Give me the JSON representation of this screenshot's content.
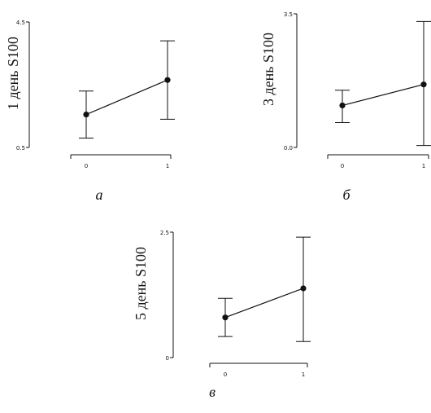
{
  "chart_data": [
    {
      "type": "line",
      "panel_label": "а",
      "ylabel": "1 день S100",
      "ylim": [
        0.5,
        4.5
      ],
      "y_ticks": [
        "0.5",
        "4.5"
      ],
      "x": [
        0,
        1
      ],
      "x_ticks": [
        "0",
        "1"
      ],
      "values": [
        1.55,
        2.65
      ],
      "error_low": [
        0.8,
        1.4
      ],
      "error_high": [
        2.3,
        3.9
      ]
    },
    {
      "type": "line",
      "panel_label": "б",
      "ylabel": "3 день S100",
      "ylim": [
        0.0,
        3.5
      ],
      "y_ticks": [
        "0.0",
        "3.5"
      ],
      "x": [
        0,
        1
      ],
      "x_ticks": [
        "0",
        "1"
      ],
      "values": [
        1.1,
        1.65
      ],
      "error_low": [
        0.65,
        0.05
      ],
      "error_high": [
        1.5,
        3.3
      ]
    },
    {
      "type": "line",
      "panel_label": "в",
      "ylabel": "5 день S100",
      "ylim": [
        0,
        2.5
      ],
      "y_ticks": [
        "0",
        "2.5"
      ],
      "x": [
        0,
        1
      ],
      "x_ticks": [
        "0",
        "1"
      ],
      "values": [
        0.8,
        1.38
      ],
      "error_low": [
        0.42,
        0.32
      ],
      "error_high": [
        1.18,
        2.4
      ]
    }
  ]
}
